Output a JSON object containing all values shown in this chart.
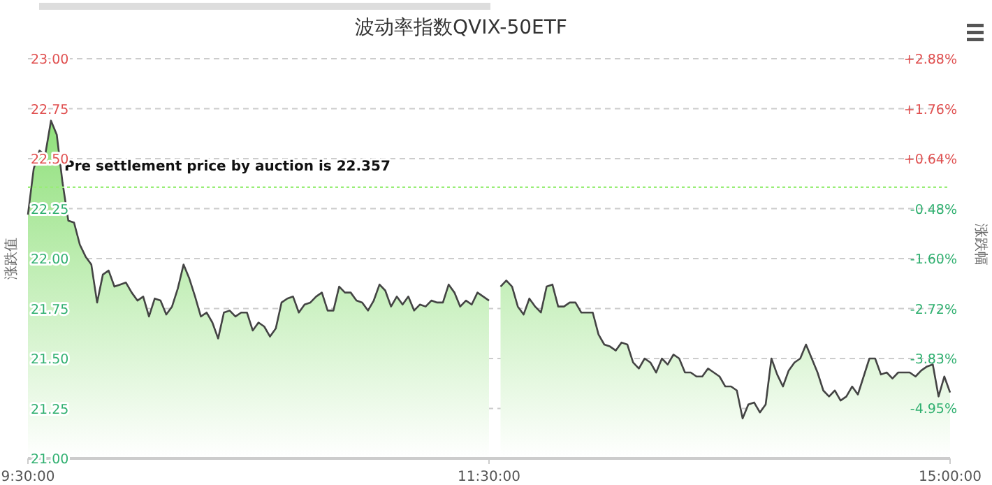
{
  "chart_data": {
    "type": "area",
    "title": "波动率指数QVIX-50ETF",
    "ylabel": "涨跌值",
    "y2label": "涨跌幅",
    "categories": [
      "9:30:00",
      null,
      null,
      null,
      null,
      null,
      null,
      null,
      null,
      null,
      null,
      null,
      null,
      null,
      null,
      null,
      null,
      null,
      null,
      null,
      null,
      null,
      null,
      null,
      null,
      null,
      null,
      null,
      null,
      null,
      null,
      null,
      null,
      null,
      null,
      null,
      null,
      null,
      null,
      null,
      null,
      null,
      null,
      null,
      null,
      null,
      null,
      null,
      null,
      null,
      null,
      null,
      null,
      null,
      null,
      null,
      null,
      null,
      null,
      null,
      null,
      null,
      null,
      null,
      null,
      null,
      null,
      null,
      null,
      null,
      null,
      null,
      null,
      null,
      null,
      null,
      null,
      null,
      null,
      null,
      "11:30:00",
      null,
      null,
      null,
      null,
      null,
      null,
      null,
      null,
      null,
      null,
      null,
      null,
      null,
      null,
      null,
      null,
      null,
      null,
      null,
      null,
      null,
      null,
      null,
      null,
      null,
      null,
      null,
      null,
      null,
      null,
      null,
      null,
      null,
      null,
      null,
      null,
      null,
      null,
      null,
      null,
      null,
      null,
      null,
      null,
      null,
      null,
      null,
      null,
      null,
      null,
      null,
      null,
      null,
      null,
      null,
      null,
      null,
      null,
      null,
      null,
      null,
      null,
      null,
      null,
      null,
      null,
      null,
      null,
      null,
      null,
      null,
      null,
      null,
      null,
      null,
      null,
      null,
      null,
      null,
      "15:00:00"
    ],
    "ylim": [
      21,
      23
    ],
    "yticks": [
      {
        "value": 21,
        "label": "21.00"
      },
      {
        "value": 21.25,
        "label": "21.25"
      },
      {
        "value": 21.5,
        "label": "21.50"
      },
      {
        "value": 21.75,
        "label": "21.75"
      },
      {
        "value": 22,
        "label": "22.00"
      },
      {
        "value": 22.25,
        "label": "22.25"
      },
      {
        "value": 22.5,
        "label": "22.50"
      },
      {
        "value": 22.75,
        "label": "22.75"
      },
      {
        "value": 23,
        "label": "23.00"
      }
    ],
    "y2lim": [
      -6.07,
      2.88
    ],
    "y2ticks": [
      {
        "value": -4.95,
        "label": "-4.95%"
      },
      {
        "value": -3.83,
        "label": "-3.83%"
      },
      {
        "value": -2.72,
        "label": "-2.72%"
      },
      {
        "value": -1.6,
        "label": "-1.60%"
      },
      {
        "value": -0.48,
        "label": "-0.48%"
      },
      {
        "value": 0.64,
        "label": "+0.64%"
      },
      {
        "value": 1.76,
        "label": "+1.76%"
      },
      {
        "value": 2.88,
        "label": "+2.88%"
      }
    ],
    "grid": "y",
    "ref_lines": [
      {
        "axis": "y",
        "value": 22.357,
        "label": "Pre settlement price by auction is 22.357",
        "color": "#99ee77",
        "line_style": "dotted"
      }
    ],
    "series": [
      {
        "color": "#444444",
        "values": [
          22.22,
          22.45,
          22.54,
          22.52,
          22.69,
          22.62,
          22.38,
          22.19,
          22.18,
          22.07,
          22.01,
          21.97,
          21.78,
          21.92,
          21.94,
          21.86,
          21.87,
          21.88,
          21.83,
          21.79,
          21.81,
          21.71,
          21.8,
          21.79,
          21.72,
          21.76,
          21.85,
          21.97,
          21.9,
          21.81,
          21.71,
          21.73,
          21.68,
          21.6,
          21.73,
          21.74,
          21.71,
          21.73,
          21.73,
          21.64,
          21.68,
          21.66,
          21.61,
          21.65,
          21.78,
          21.8,
          21.81,
          21.73,
          21.77,
          21.78,
          21.81,
          21.83,
          21.74,
          21.74,
          21.86,
          21.83,
          21.83,
          21.79,
          21.78,
          21.74,
          21.79,
          21.87,
          21.84,
          21.76,
          21.81,
          21.77,
          21.81,
          21.74,
          21.77,
          21.76,
          21.79,
          21.78,
          21.78,
          21.87,
          21.83,
          21.76,
          21.79,
          21.77,
          21.83,
          21.81,
          21.79,
          null,
          21.86,
          21.89,
          21.86,
          21.76,
          21.72,
          21.8,
          21.76,
          21.73,
          21.86,
          21.87,
          21.76,
          21.76,
          21.78,
          21.78,
          21.73,
          21.73,
          21.73,
          21.62,
          21.57,
          21.56,
          21.54,
          21.58,
          21.57,
          21.48,
          21.45,
          21.5,
          21.48,
          21.43,
          21.5,
          21.47,
          21.52,
          21.5,
          21.43,
          21.43,
          21.41,
          21.41,
          21.45,
          21.43,
          21.41,
          21.36,
          21.36,
          21.34,
          21.2,
          21.27,
          21.28,
          21.23,
          21.27,
          21.5,
          21.42,
          21.36,
          21.44,
          21.48,
          21.5,
          21.57,
          21.5,
          21.43,
          21.34,
          21.31,
          21.34,
          21.29,
          21.31,
          21.36,
          21.32,
          21.41,
          21.5,
          21.5,
          21.42,
          21.43,
          21.4,
          21.43,
          21.43,
          21.43,
          21.41,
          21.44,
          21.46,
          21.47,
          21.31,
          21.41,
          21.33
        ]
      }
    ]
  }
}
